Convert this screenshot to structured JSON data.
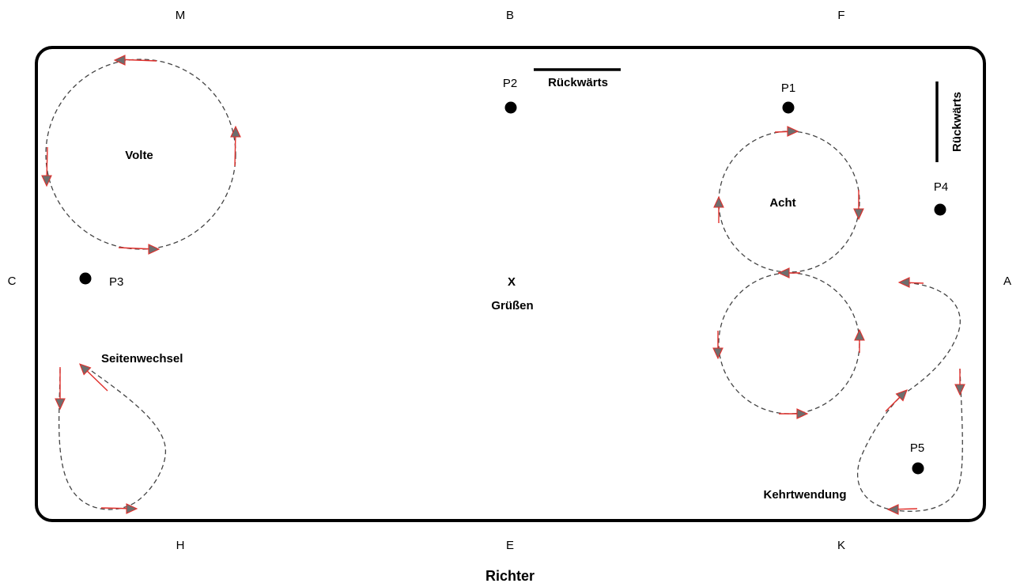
{
  "arena": {
    "edge_letters": {
      "top": [
        "M",
        "B",
        "F"
      ],
      "left": "C",
      "right": "A",
      "bottom": [
        "H",
        "E",
        "K"
      ]
    },
    "center": {
      "letter": "X",
      "action": "Grüßen"
    },
    "points": {
      "p1": "P1",
      "p2": "P2",
      "p3": "P3",
      "p4": "P4",
      "p5": "P5"
    },
    "figures": {
      "volte": "Volte",
      "acht": "Acht",
      "seitenwechsel": "Seitenwechsel",
      "kehrtwendung": "Kehrtwendung",
      "rueckwaerts_horizontal": "Rückwärts",
      "rueckwaerts_vertical": "Rückwärts"
    },
    "judge": "Richter",
    "colors": {
      "border": "#000000",
      "path": "#444444",
      "arrow": "#e0302c",
      "arrow_fill": "#6e6e6e"
    }
  }
}
